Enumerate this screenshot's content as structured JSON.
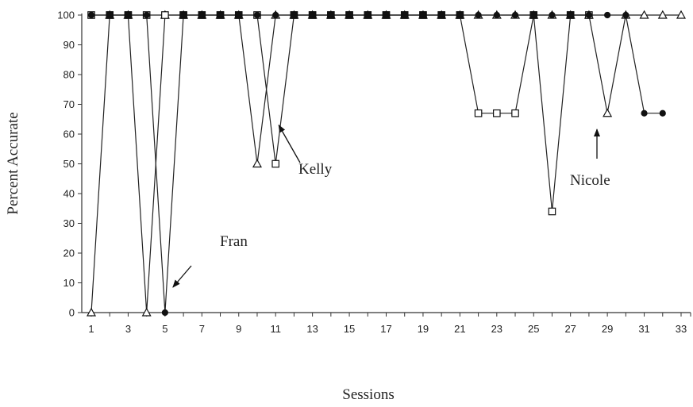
{
  "chart_data": {
    "type": "line",
    "title": "",
    "xlabel": "Sessions",
    "ylabel": "Percent Accurate",
    "xlim": [
      1,
      33
    ],
    "ylim": [
      0,
      100
    ],
    "x_ticks": [
      1,
      3,
      5,
      7,
      9,
      11,
      13,
      15,
      17,
      19,
      21,
      23,
      25,
      27,
      29,
      31,
      33
    ],
    "y_ticks": [
      0,
      10,
      20,
      30,
      40,
      50,
      60,
      70,
      80,
      90,
      100
    ],
    "grid": false,
    "legend": "none",
    "series": [
      {
        "name": "Fran",
        "marker": "circle-filled",
        "x": [
          1,
          2,
          3,
          4,
          5,
          6,
          7,
          8,
          9,
          10,
          11,
          12,
          13,
          14,
          15,
          16,
          17,
          18,
          19,
          20,
          21,
          22,
          23,
          24,
          25,
          26,
          27,
          28,
          29,
          30,
          31,
          32
        ],
        "values": [
          100,
          100,
          100,
          100,
          0,
          100,
          100,
          100,
          100,
          100,
          100,
          100,
          100,
          100,
          100,
          100,
          100,
          100,
          100,
          100,
          100,
          100,
          100,
          100,
          100,
          100,
          100,
          100,
          100,
          100,
          67,
          67
        ]
      },
      {
        "name": "Kelly",
        "marker": "square-open",
        "x": [
          1,
          2,
          3,
          4,
          5,
          6,
          7,
          8,
          9,
          10,
          11,
          12,
          13,
          14,
          15,
          16,
          17,
          18,
          19,
          20,
          21,
          22,
          23,
          24,
          25,
          26,
          27,
          28
        ],
        "values": [
          100,
          100,
          100,
          100,
          100,
          100,
          100,
          100,
          100,
          100,
          50,
          100,
          100,
          100,
          100,
          100,
          100,
          100,
          100,
          100,
          100,
          67,
          67,
          67,
          100,
          34,
          100,
          100
        ]
      },
      {
        "name": "Nicole",
        "marker": "triangle-open",
        "x": [
          1,
          2,
          3,
          4,
          5,
          6,
          7,
          8,
          9,
          10,
          11,
          12,
          13,
          14,
          15,
          16,
          17,
          18,
          19,
          20,
          21,
          22,
          23,
          24,
          25,
          26,
          27,
          28,
          29,
          30,
          31,
          32,
          33
        ],
        "values": [
          0,
          100,
          100,
          0,
          100,
          100,
          100,
          100,
          100,
          50,
          100,
          100,
          100,
          100,
          100,
          100,
          100,
          100,
          100,
          100,
          100,
          100,
          100,
          100,
          100,
          100,
          100,
          100,
          67,
          100,
          100,
          100,
          100
        ]
      }
    ],
    "annotations": [
      {
        "text": "Fran",
        "points_to": {
          "x": 5,
          "y": 0
        }
      },
      {
        "text": "Kelly",
        "points_to": {
          "x": 11,
          "y": 63
        }
      },
      {
        "text": "Nicole",
        "points_to": {
          "x": 28.5,
          "y": 63
        }
      }
    ]
  }
}
